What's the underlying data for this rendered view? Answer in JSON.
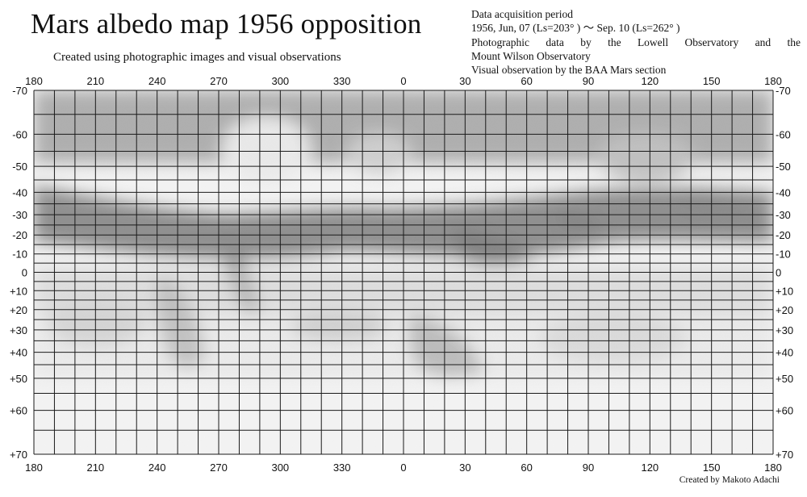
{
  "header": {
    "title": "Mars albedo map 1956 opposition",
    "subtitle": "Created using photographic images and visual observations"
  },
  "info": {
    "line1": "Data acquisition period",
    "line2": "1956, Jun, 07 (Ls=203° ) ～   Sep. 10 (Ls=262° )",
    "line3a": "Photographic data by the Lowell Observatory and the",
    "line3b": "Mount Wilson Observatory",
    "line4": "Visual observation by the BAA Mars section"
  },
  "credit": "Created by Makoto Adachi",
  "map": {
    "longitude_labels": [
      "180",
      "210",
      "240",
      "270",
      "300",
      "330",
      "0",
      "30",
      "60",
      "90",
      "120",
      "150",
      "180"
    ],
    "latitude_labels": [
      "-70",
      "-60",
      "-50",
      "-40",
      "-30",
      "-20",
      "-10",
      "0",
      "+10",
      "+20",
      "+30",
      "+40",
      "+50",
      "+60",
      "+70"
    ],
    "latitude_values": [
      -70,
      -60,
      -50,
      -40,
      -30,
      -20,
      -10,
      0,
      10,
      20,
      30,
      40,
      50,
      60,
      70
    ],
    "colors": {
      "grid": "#1a1a1a",
      "dark_albedo": "#3a3a3a",
      "mid_albedo": "#8a8a8a",
      "light_albedo": "#cfcfcf",
      "paper": "#f3f3f3"
    }
  }
}
